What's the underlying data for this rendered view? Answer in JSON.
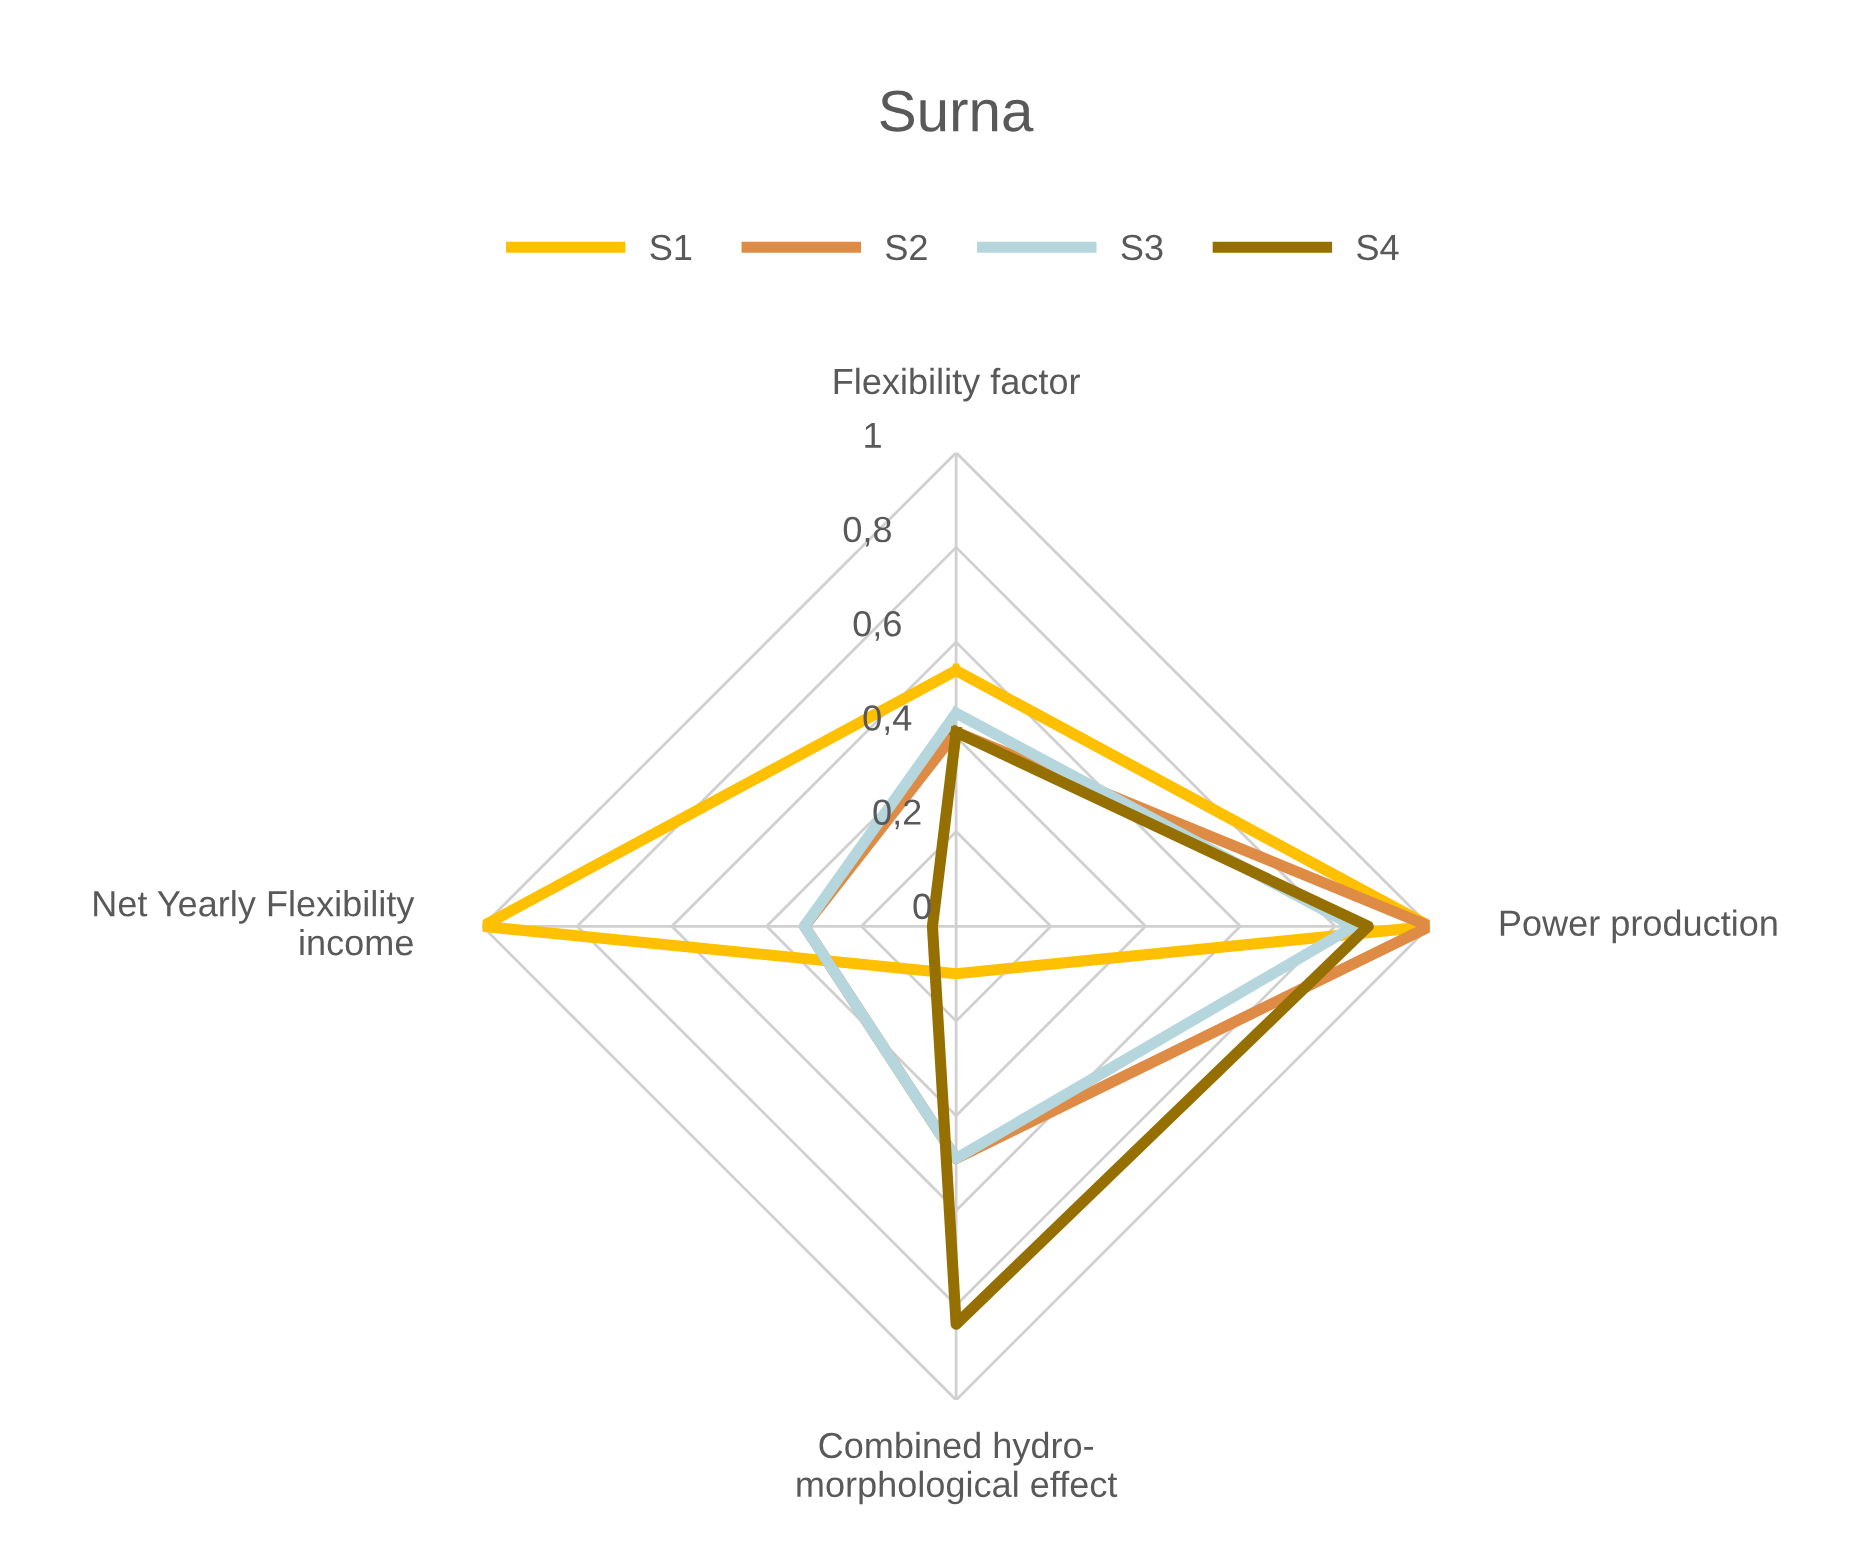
{
  "chart_data": {
    "type": "radar",
    "title": "Surna",
    "categories": [
      "Flexibility factor",
      "Power production",
      "Combined hydro-\nmorphological effect",
      "Net Yearly Flexibility\nincome"
    ],
    "series": [
      {
        "name": "S1",
        "color": "#ffc000",
        "values": [
          0.54,
          1.0,
          0.1,
          1.0
        ]
      },
      {
        "name": "S2",
        "color": "#de8c45",
        "values": [
          0.41,
          1.0,
          0.49,
          0.32
        ]
      },
      {
        "name": "S3",
        "color": "#b4d6dc",
        "values": [
          0.45,
          0.84,
          0.49,
          0.32
        ]
      },
      {
        "name": "S4",
        "color": "#957000",
        "values": [
          0.41,
          0.87,
          0.84,
          0.05
        ]
      }
    ],
    "ylim": [
      0,
      1
    ],
    "yticks": [
      {
        "value": 0,
        "label": "0"
      },
      {
        "value": 0.2,
        "label": "0,2"
      },
      {
        "value": 0.4,
        "label": "0,4"
      },
      {
        "value": 0.6,
        "label": "0,6"
      },
      {
        "value": 0.8,
        "label": "0,8"
      },
      {
        "value": 1,
        "label": "1"
      }
    ],
    "grid": true,
    "legend": "top",
    "marker": "none",
    "line_style": "solid"
  }
}
